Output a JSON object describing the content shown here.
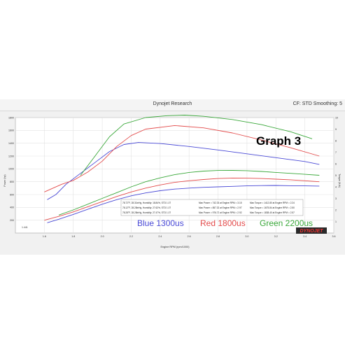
{
  "window": {
    "title": "Dynojet Research",
    "cf_label": "CF: STD Smoothing: 5"
  },
  "brand": "DYNOJET",
  "chart_data": {
    "type": "line",
    "title": "Graph 3",
    "xlabel": "Engine RPM (rpm/1000)",
    "ylabel": "Power (hp)",
    "y2label": "Torque (ft-lb)",
    "xlim": [
      1.4,
      3.6
    ],
    "ylim": [
      0,
      1800
    ],
    "y2lim": [
      0,
      10
    ],
    "x_ticks": [
      "1.6",
      "1.8",
      "2.0",
      "2.2",
      "2.4",
      "2.6",
      "2.8",
      "3.0",
      "3.2",
      "3.4",
      "3.6"
    ],
    "y_ticks": [
      "200",
      "400",
      "600",
      "800",
      "1000",
      "1200",
      "1400",
      "1600",
      "1800"
    ],
    "y2_ticks": [
      "1",
      "2",
      "3",
      "4",
      "5",
      "6",
      "7",
      "8",
      "9",
      "10"
    ],
    "grid": true,
    "small_annotation": "1.441",
    "legend_rows": [
      {
        "conditions": "78.72°F, 28.31inHg, Humidity: 18.84%, STD 1.07",
        "power": "Max Power = 742.33 at Engine RPM = 3.15",
        "torque": "Max Torque = 1412.80 at Engine RPM = 2.24"
      },
      {
        "conditions": "78.12°F, 28.28inHg, Humidity: 27.62%, STD 1.07",
        "power": "Max Power = 857.32 at Engine RPM = 2.97",
        "torque": "Max Torque = 1675.84 at Engine RPM = 2.50"
      },
      {
        "conditions": "78.28°F, 28.28inHg, Humidity: 27.47%, STD 1.07",
        "power": "Max Power = 976.72 at Engine RPM = 2.92",
        "torque": "Max Torque = 1838.40 at Engine RPM = 2.57"
      }
    ],
    "series": [
      {
        "name": "Blue 1300us",
        "color": "#4a4ad6",
        "power": {
          "x": [
            1.62,
            1.7,
            1.8,
            1.9,
            2.0,
            2.1,
            2.2,
            2.3,
            2.4,
            2.5,
            2.6,
            2.7,
            2.8,
            2.9,
            3.0,
            3.1,
            3.2,
            3.3,
            3.4,
            3.5
          ],
          "y": [
            160,
            215,
            290,
            370,
            450,
            520,
            580,
            625,
            660,
            685,
            700,
            712,
            720,
            728,
            735,
            740,
            742,
            738,
            735,
            732
          ]
        },
        "torque": {
          "x": [
            1.62,
            1.68,
            1.75,
            1.85,
            1.95,
            2.05,
            2.15,
            2.25,
            2.4,
            2.6,
            2.8,
            3.0,
            3.2,
            3.4,
            3.5
          ],
          "y": [
            520,
            600,
            760,
            930,
            1100,
            1270,
            1380,
            1412,
            1395,
            1350,
            1295,
            1235,
            1175,
            1115,
            1070
          ]
        }
      },
      {
        "name": "Red 1800us",
        "color": "#e34b4b",
        "power": {
          "x": [
            1.6,
            1.7,
            1.8,
            1.9,
            2.0,
            2.1,
            2.2,
            2.3,
            2.4,
            2.5,
            2.6,
            2.7,
            2.8,
            2.9,
            3.0,
            3.1,
            3.2,
            3.3,
            3.4,
            3.5
          ],
          "y": [
            200,
            260,
            330,
            410,
            490,
            570,
            640,
            700,
            750,
            790,
            815,
            835,
            850,
            857,
            855,
            850,
            840,
            830,
            815,
            800
          ]
        },
        "torque": {
          "x": [
            1.6,
            1.66,
            1.72,
            1.8,
            1.9,
            2.0,
            2.1,
            2.2,
            2.3,
            2.5,
            2.7,
            2.9,
            3.1,
            3.3,
            3.5
          ],
          "y": [
            640,
            700,
            760,
            820,
            950,
            1120,
            1350,
            1520,
            1620,
            1676,
            1640,
            1560,
            1450,
            1330,
            1200
          ]
        }
      },
      {
        "name": "Green 2200us",
        "color": "#3aa83a",
        "power": {
          "x": [
            1.7,
            1.8,
            1.9,
            2.0,
            2.1,
            2.2,
            2.3,
            2.4,
            2.5,
            2.6,
            2.7,
            2.8,
            2.9,
            3.0,
            3.1,
            3.2,
            3.3,
            3.4,
            3.5
          ],
          "y": [
            280,
            360,
            450,
            540,
            630,
            720,
            800,
            860,
            910,
            945,
            965,
            975,
            976,
            972,
            960,
            945,
            930,
            915,
            900
          ]
        },
        "torque": {
          "x": [
            1.85,
            1.95,
            2.05,
            2.15,
            2.3,
            2.45,
            2.57,
            2.7,
            2.9,
            3.1,
            3.3,
            3.45
          ],
          "y": [
            900,
            1200,
            1500,
            1700,
            1800,
            1830,
            1838,
            1820,
            1770,
            1690,
            1580,
            1470
          ]
        }
      }
    ]
  }
}
